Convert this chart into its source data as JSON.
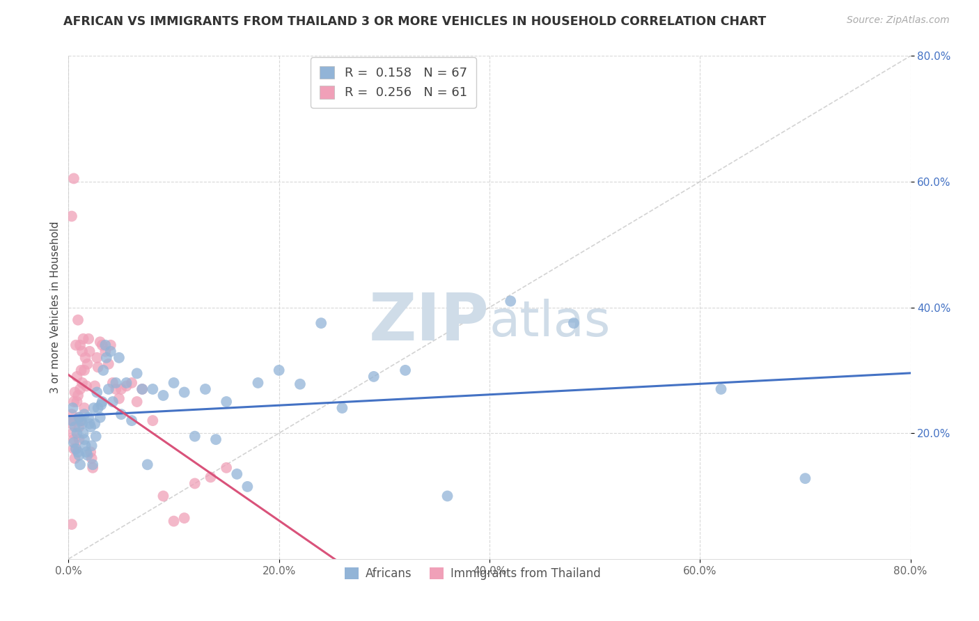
{
  "title": "AFRICAN VS IMMIGRANTS FROM THAILAND 3 OR MORE VEHICLES IN HOUSEHOLD CORRELATION CHART",
  "source": "Source: ZipAtlas.com",
  "ylabel": "3 or more Vehicles in Household",
  "xlim": [
    0.0,
    0.8
  ],
  "ylim": [
    0.0,
    0.8
  ],
  "xticks": [
    0.0,
    0.2,
    0.4,
    0.6,
    0.8
  ],
  "yticks": [
    0.2,
    0.4,
    0.6,
    0.8
  ],
  "xticklabels": [
    "0.0%",
    "20.0%",
    "40.0%",
    "60.0%",
    "80.0%"
  ],
  "yticklabels": [
    "20.0%",
    "40.0%",
    "60.0%",
    "80.0%"
  ],
  "legend_R_blue": "0.158",
  "legend_N_blue": "67",
  "legend_R_pink": "0.256",
  "legend_N_pink": "61",
  "blue_color": "#92b4d7",
  "pink_color": "#f0a0b8",
  "blue_line_color": "#4472c4",
  "pink_line_color": "#d9527a",
  "diagonal_color": "#c8c8c8",
  "watermark_color": "#cfdce8",
  "background_color": "#ffffff",
  "grid_color": "#d8d8d8",
  "africans_x": [
    0.003,
    0.004,
    0.005,
    0.006,
    0.007,
    0.008,
    0.009,
    0.01,
    0.01,
    0.011,
    0.012,
    0.013,
    0.014,
    0.015,
    0.015,
    0.016,
    0.017,
    0.018,
    0.019,
    0.02,
    0.021,
    0.022,
    0.023,
    0.024,
    0.025,
    0.026,
    0.027,
    0.028,
    0.03,
    0.031,
    0.032,
    0.033,
    0.035,
    0.036,
    0.038,
    0.04,
    0.042,
    0.045,
    0.048,
    0.05,
    0.055,
    0.06,
    0.065,
    0.07,
    0.075,
    0.08,
    0.09,
    0.1,
    0.11,
    0.12,
    0.13,
    0.14,
    0.15,
    0.16,
    0.17,
    0.18,
    0.2,
    0.22,
    0.24,
    0.26,
    0.29,
    0.32,
    0.36,
    0.42,
    0.48,
    0.62,
    0.7
  ],
  "africans_y": [
    0.22,
    0.24,
    0.185,
    0.21,
    0.175,
    0.2,
    0.17,
    0.165,
    0.225,
    0.15,
    0.22,
    0.215,
    0.2,
    0.23,
    0.19,
    0.18,
    0.17,
    0.165,
    0.225,
    0.215,
    0.21,
    0.18,
    0.15,
    0.24,
    0.215,
    0.195,
    0.265,
    0.24,
    0.225,
    0.245,
    0.25,
    0.3,
    0.34,
    0.32,
    0.27,
    0.33,
    0.25,
    0.28,
    0.32,
    0.23,
    0.28,
    0.22,
    0.295,
    0.27,
    0.15,
    0.27,
    0.26,
    0.28,
    0.265,
    0.195,
    0.27,
    0.19,
    0.25,
    0.135,
    0.115,
    0.28,
    0.3,
    0.278,
    0.375,
    0.24,
    0.29,
    0.3,
    0.1,
    0.41,
    0.375,
    0.27,
    0.128
  ],
  "thailand_x": [
    0.003,
    0.003,
    0.004,
    0.004,
    0.005,
    0.005,
    0.005,
    0.006,
    0.006,
    0.007,
    0.007,
    0.008,
    0.008,
    0.009,
    0.009,
    0.01,
    0.01,
    0.01,
    0.011,
    0.011,
    0.012,
    0.012,
    0.013,
    0.013,
    0.014,
    0.015,
    0.015,
    0.016,
    0.017,
    0.018,
    0.019,
    0.02,
    0.021,
    0.022,
    0.023,
    0.025,
    0.027,
    0.028,
    0.03,
    0.032,
    0.035,
    0.038,
    0.04,
    0.042,
    0.045,
    0.048,
    0.05,
    0.055,
    0.06,
    0.065,
    0.07,
    0.08,
    0.09,
    0.1,
    0.11,
    0.12,
    0.135,
    0.15,
    0.003,
    0.003,
    0.005
  ],
  "thailand_y": [
    0.23,
    0.215,
    0.22,
    0.2,
    0.19,
    0.175,
    0.25,
    0.16,
    0.265,
    0.175,
    0.34,
    0.29,
    0.25,
    0.38,
    0.26,
    0.225,
    0.21,
    0.19,
    0.34,
    0.27,
    0.3,
    0.22,
    0.33,
    0.28,
    0.35,
    0.3,
    0.24,
    0.32,
    0.275,
    0.31,
    0.35,
    0.33,
    0.17,
    0.16,
    0.145,
    0.275,
    0.32,
    0.305,
    0.345,
    0.34,
    0.33,
    0.31,
    0.34,
    0.28,
    0.27,
    0.255,
    0.27,
    0.275,
    0.28,
    0.25,
    0.27,
    0.22,
    0.1,
    0.06,
    0.065,
    0.12,
    0.13,
    0.145,
    0.545,
    0.055,
    0.605
  ]
}
